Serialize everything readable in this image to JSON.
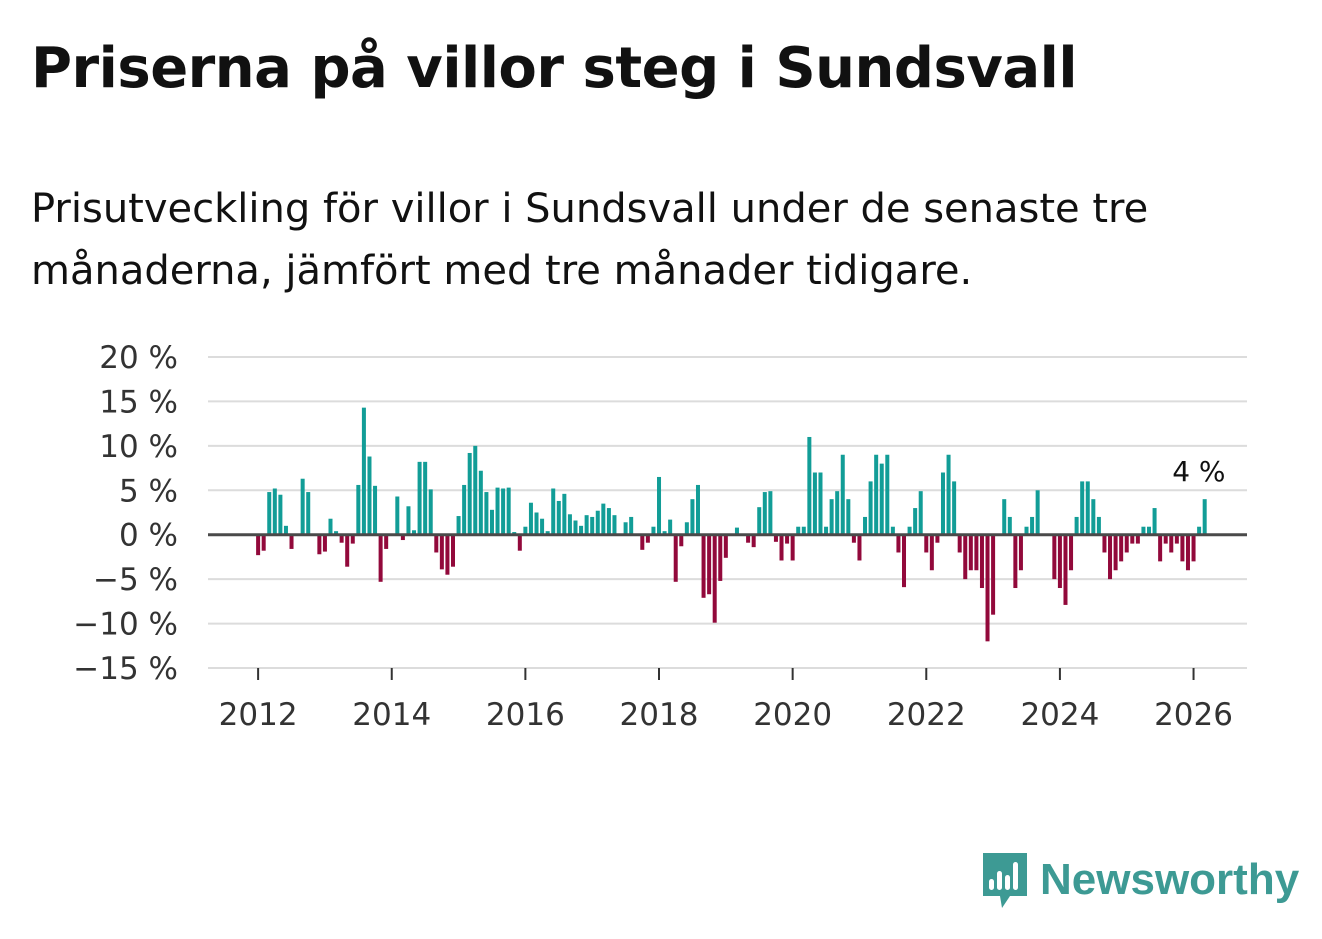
{
  "header": {
    "title": "Priserna på villor steg i Sundsvall",
    "subtitle": "Prisutveckling för villor i Sundsvall under de senaste tre månaderna, jämfört med tre månader tidigare."
  },
  "brand": {
    "name": "Newsworthy",
    "color": "#3d9a94"
  },
  "chart_data": {
    "type": "bar",
    "title": "Priserna på villor steg i Sundsvall",
    "subtitle": "Prisutveckling för villor i Sundsvall under de senaste tre månaderna, jämfört med tre månader tidigare.",
    "xlabel": "",
    "ylabel": "",
    "ylim": [
      -15,
      20
    ],
    "xlim": [
      2011.25,
      2026.8
    ],
    "y_ticks": [
      20,
      15,
      10,
      5,
      0,
      -5,
      -10,
      -15
    ],
    "y_tick_labels": [
      "20 %",
      "15 %",
      "10 %",
      "5 %",
      "0 %",
      "−5 %",
      "−10 %",
      "−15 %"
    ],
    "x_ticks": [
      2012,
      2014,
      2016,
      2018,
      2020,
      2022,
      2024,
      2026
    ],
    "x_tick_labels": [
      "2012",
      "2014",
      "2016",
      "2018",
      "2020",
      "2022",
      "2024",
      "2026"
    ],
    "grid": true,
    "colors": {
      "positive": "#129d97",
      "negative": "#92093b",
      "grid": "#dcdcdc",
      "zero_line": "#4a4a4a"
    },
    "annotation": {
      "text": "4 %",
      "x": 2026.08,
      "y": 4
    },
    "start": 2012.0,
    "step_months": 1,
    "values": [
      -2.3,
      -1.8,
      4.8,
      5.2,
      4.5,
      1.0,
      -1.6,
      0,
      6.3,
      4.8,
      0,
      -2.2,
      -1.9,
      1.8,
      0.4,
      -0.9,
      -3.6,
      -1.0,
      5.6,
      14.3,
      8.8,
      5.5,
      -5.3,
      -1.6,
      0,
      4.3,
      -0.6,
      3.2,
      0.5,
      8.2,
      8.2,
      5.1,
      -2.0,
      -3.9,
      -4.5,
      -3.6,
      2.1,
      5.6,
      9.2,
      10.0,
      7.2,
      4.8,
      2.8,
      5.3,
      5.2,
      5.3,
      0.3,
      -1.8,
      0.9,
      3.6,
      2.5,
      1.8,
      0.4,
      5.2,
      3.8,
      4.6,
      2.3,
      1.6,
      1.0,
      2.2,
      2.0,
      2.7,
      3.5,
      3.0,
      2.2,
      0,
      1.4,
      2.0,
      0,
      -1.7,
      -0.9,
      0.9,
      6.5,
      0.4,
      1.7,
      -5.3,
      -1.3,
      1.4,
      4.0,
      5.6,
      -7.1,
      -6.7,
      -9.9,
      -5.2,
      -2.6,
      0,
      0.8,
      0,
      -0.9,
      -1.4,
      3.1,
      4.8,
      4.9,
      -0.8,
      -2.9,
      -1.0,
      -2.9,
      0.9,
      0.9,
      11.0,
      7.0,
      7.0,
      0.9,
      4.0,
      4.9,
      9.0,
      4.0,
      -0.9,
      -2.9,
      2.0,
      6.0,
      9.0,
      8.0,
      9.0,
      0.9,
      -2.0,
      -5.9,
      0.9,
      3.0,
      4.9,
      -2.0,
      -4.0,
      -0.9,
      7.0,
      9.0,
      6.0,
      -2.0,
      -5.0,
      -4.0,
      -4.0,
      -6.0,
      -12.0,
      -9.0,
      0,
      4.0,
      2.0,
      -6.0,
      -4.0,
      0.9,
      2.0,
      5.0,
      0,
      0,
      -5.0,
      -6.0,
      -7.9,
      -4.0,
      2.0,
      6.0,
      6.0,
      4.0,
      2.0,
      -2.0,
      -5.0,
      -4.0,
      -3.0,
      -2.0,
      -1.0,
      -1.0,
      0.9,
      0.9,
      3.0,
      -3.0,
      -1.0,
      -2.0,
      -1.0,
      -3.0,
      -4.0,
      -3.0,
      0.9,
      4.0
    ]
  }
}
